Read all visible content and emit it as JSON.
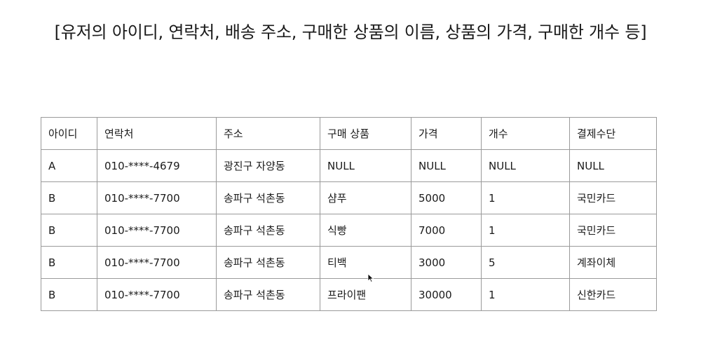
{
  "heading": "[유저의 아이디, 연락처, 배송 주소, 구매한 상품의 이름, 상품의 가격, 구매한 개수 등]",
  "table": {
    "headers": [
      "아이디",
      "연락처",
      "주소",
      "구매 상품",
      "가격",
      "개수",
      "결제수단"
    ],
    "rows": [
      [
        "A",
        "010-****-4679",
        "광진구 자양동",
        "NULL",
        "NULL",
        "NULL",
        "NULL"
      ],
      [
        "B",
        "010-****-7700",
        "송파구 석촌동",
        "샴푸",
        "5000",
        "1",
        "국민카드"
      ],
      [
        "B",
        "010-****-7700",
        "송파구 석촌동",
        "식빵",
        "7000",
        "1",
        "국민카드"
      ],
      [
        "B",
        "010-****-7700",
        "송파구 석촌동",
        "티백",
        "3000",
        "5",
        "계좌이체"
      ],
      [
        "B",
        "010-****-7700",
        "송파구 석촌동",
        "프라이팬",
        "30000",
        "1",
        "신한카드"
      ]
    ]
  },
  "cursor_icon": "mouse-pointer-icon"
}
